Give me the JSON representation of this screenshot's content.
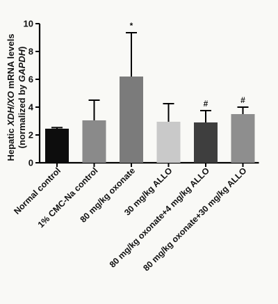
{
  "chart_data": {
    "type": "bar",
    "ylabel_line1_prefix": "Hepatic ",
    "ylabel_line1_italic": "XDH/XO",
    "ylabel_line1_suffix": " mRNA levels",
    "ylabel_line2_prefix": "(normalized by ",
    "ylabel_line2_italic": "GAPDH",
    "ylabel_line2_suffix": ")",
    "ylim": [
      0,
      10
    ],
    "yticks": [
      "0",
      "2",
      "4",
      "6",
      "8",
      "10"
    ],
    "categories": [
      "Normal control",
      "1% CMC-Na control",
      "80 mg/kg oxonate",
      "30 mg/kg ALLO",
      "80 mg/kg oxonate+4 mg/kg ALLO",
      "80 mg/kg oxonate+30 mg/kg ALLO"
    ],
    "values": [
      2.45,
      3.05,
      6.2,
      2.95,
      2.9,
      3.5
    ],
    "errors": [
      0.08,
      1.45,
      3.15,
      1.3,
      0.85,
      0.5
    ],
    "annotations": [
      "",
      "",
      "*",
      "",
      "#",
      "#"
    ],
    "colors": [
      "#0d0d0d",
      "#8a8a8a",
      "#7b7b7b",
      "#c9c9c9",
      "#3e3e3e",
      "#8e8e8e"
    ],
    "grid": false
  }
}
